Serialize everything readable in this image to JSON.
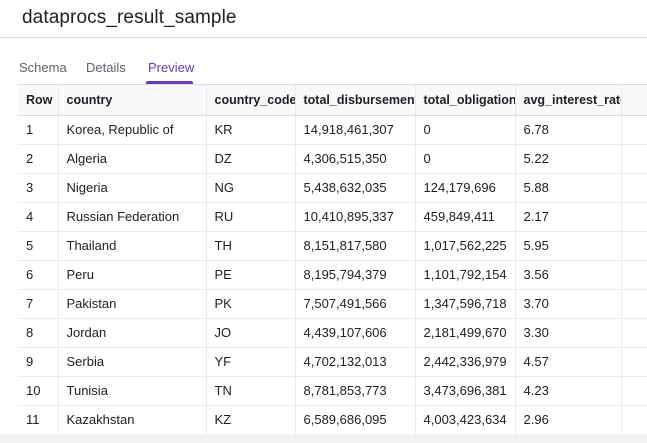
{
  "header": {
    "title": "dataprocs_result_sample"
  },
  "tabs": [
    {
      "label": "Schema",
      "active": false
    },
    {
      "label": "Details",
      "active": false
    },
    {
      "label": "Preview",
      "active": true
    }
  ],
  "accent_color": "#673ab7",
  "table": {
    "columns": [
      "Row",
      "country",
      "country_code",
      "total_disbursement",
      "total_obligation",
      "avg_interest_rate"
    ],
    "rows": [
      [
        "1",
        "Korea, Republic of",
        "KR",
        "14,918,461,307",
        "0",
        "6.78"
      ],
      [
        "2",
        "Algeria",
        "DZ",
        "4,306,515,350",
        "0",
        "5.22"
      ],
      [
        "3",
        "Nigeria",
        "NG",
        "5,438,632,035",
        "124,179,696",
        "5.88"
      ],
      [
        "4",
        "Russian Federation",
        "RU",
        "10,410,895,337",
        "459,849,411",
        "2.17"
      ],
      [
        "5",
        "Thailand",
        "TH",
        "8,151,817,580",
        "1,017,562,225",
        "5.95"
      ],
      [
        "6",
        "Peru",
        "PE",
        "8,195,794,379",
        "1,101,792,154",
        "3.56"
      ],
      [
        "7",
        "Pakistan",
        "PK",
        "7,507,491,566",
        "1,347,596,718",
        "3.70"
      ],
      [
        "8",
        "Jordan",
        "JO",
        "4,439,107,606",
        "2,181,499,670",
        "3.30"
      ],
      [
        "9",
        "Serbia",
        "YF",
        "4,702,132,013",
        "2,442,336,979",
        "4.57"
      ],
      [
        "10",
        "Tunisia",
        "TN",
        "8,781,853,773",
        "3,473,696,381",
        "4.23"
      ],
      [
        "11",
        "Kazakhstan",
        "KZ",
        "6,589,686,095",
        "4,003,423,634",
        "2.96"
      ]
    ]
  }
}
